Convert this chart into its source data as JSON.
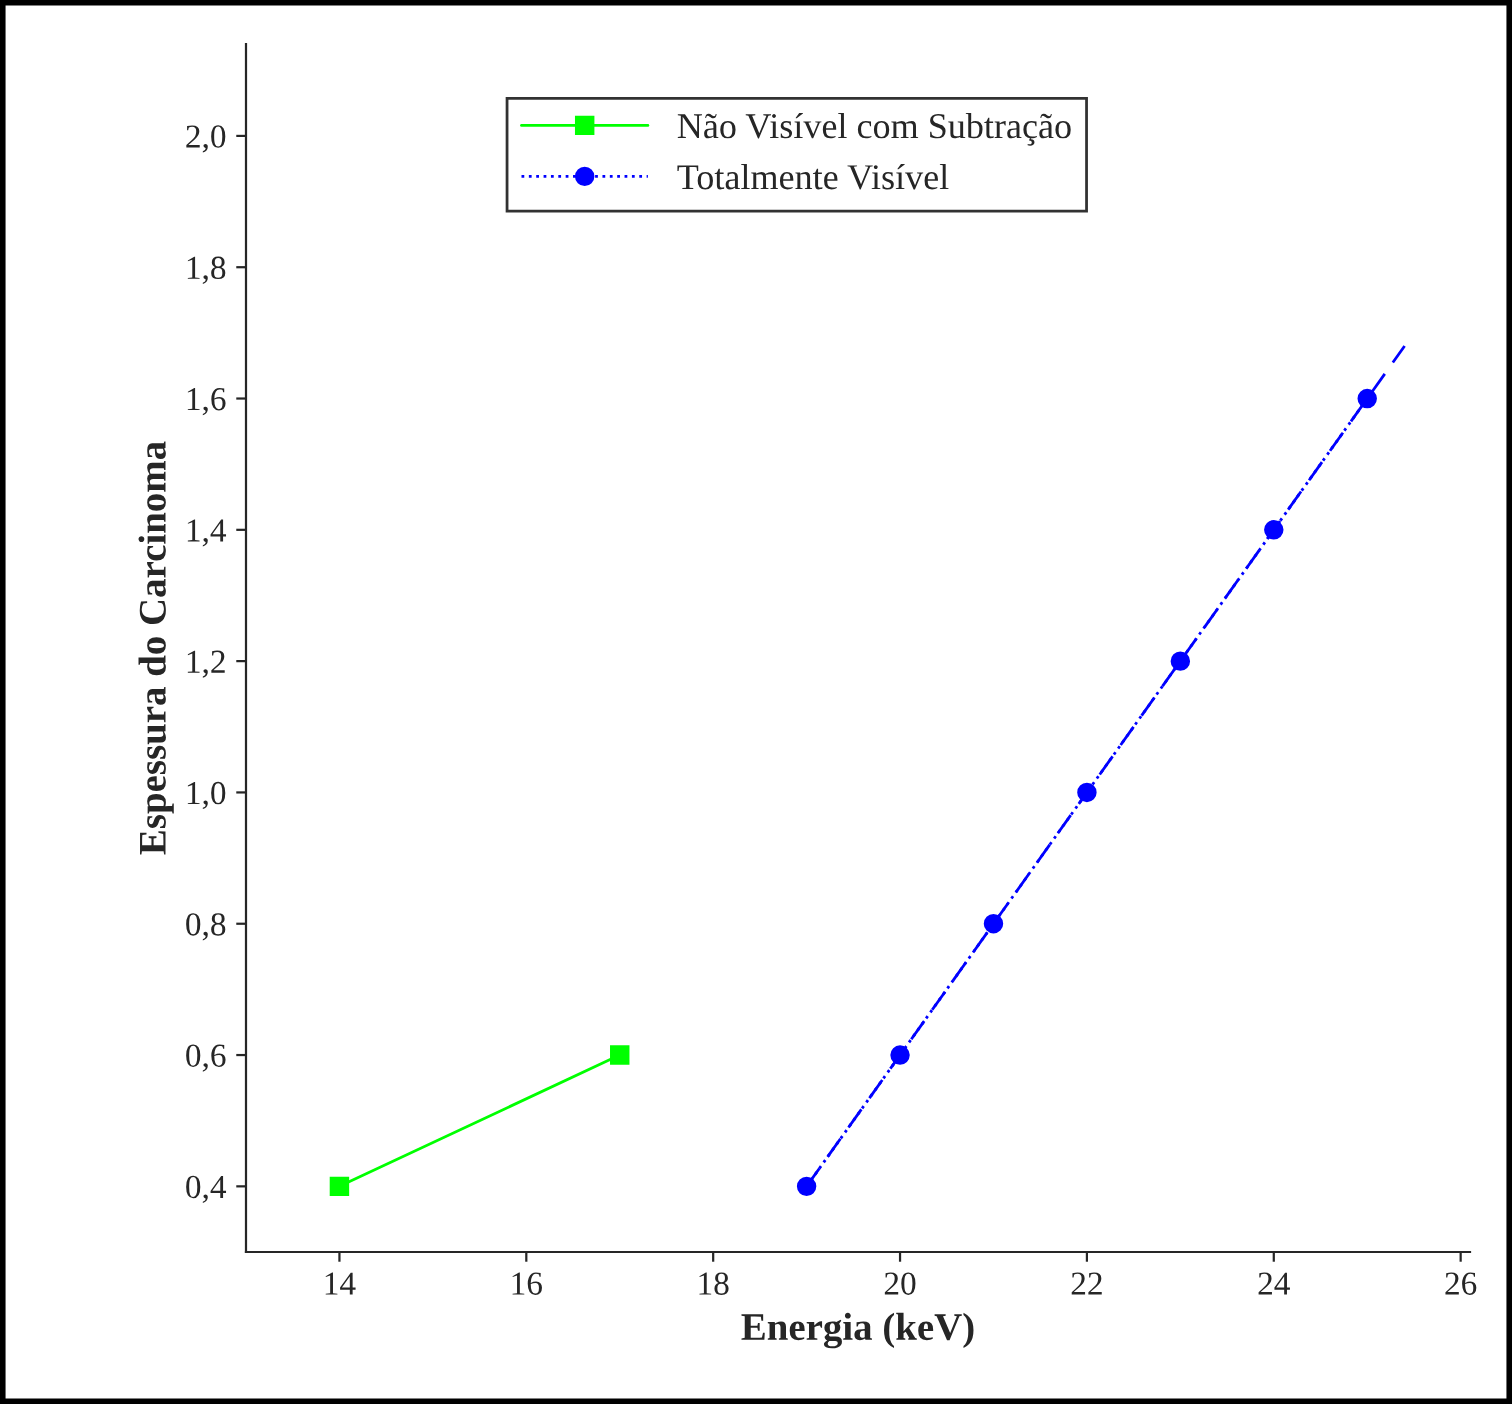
{
  "chart_data": {
    "type": "line",
    "xlabel": "Energia (keV)",
    "ylabel": "Espessura do Carcinoma",
    "series": [
      {
        "name": "Não Visível com Subtração",
        "color": "#00ff00",
        "x": [
          14,
          17
        ],
        "values": [
          0.4,
          0.6
        ],
        "marker": "square",
        "line_style": "solid"
      },
      {
        "name": "Totalmente Visível",
        "color": "#0000ff",
        "x": [
          19,
          20,
          21,
          22,
          23,
          24,
          25
        ],
        "values": [
          0.4,
          0.6,
          0.8,
          1.0,
          1.2,
          1.4,
          1.6
        ],
        "marker": "circle",
        "line_style": "dotted"
      },
      {
        "type": "line",
        "color": "#0000ff",
        "x": [
          19,
          25.4
        ],
        "values": [
          0.4,
          1.68
        ],
        "marker": "none",
        "line_style": "dashed"
      }
    ],
    "xlim": [
      13,
      26.1
    ],
    "xticks": [
      14,
      16,
      18,
      20,
      22,
      24,
      26
    ],
    "ylim": [
      0.3,
      2.14
    ],
    "yticks": [
      {
        "value": 0.4,
        "label": "0,4"
      },
      {
        "value": 0.6,
        "label": "0,6"
      },
      {
        "value": 0.8,
        "label": "0,8"
      },
      {
        "value": 1.0,
        "label": "1,0"
      },
      {
        "value": 1.2,
        "label": "1,2"
      },
      {
        "value": 1.4,
        "label": "1,4"
      },
      {
        "value": 1.6,
        "label": "1,6"
      },
      {
        "value": 1.8,
        "label": "1,8"
      },
      {
        "value": 2.0,
        "label": "2,0"
      }
    ],
    "grid": false,
    "legend": "top"
  }
}
